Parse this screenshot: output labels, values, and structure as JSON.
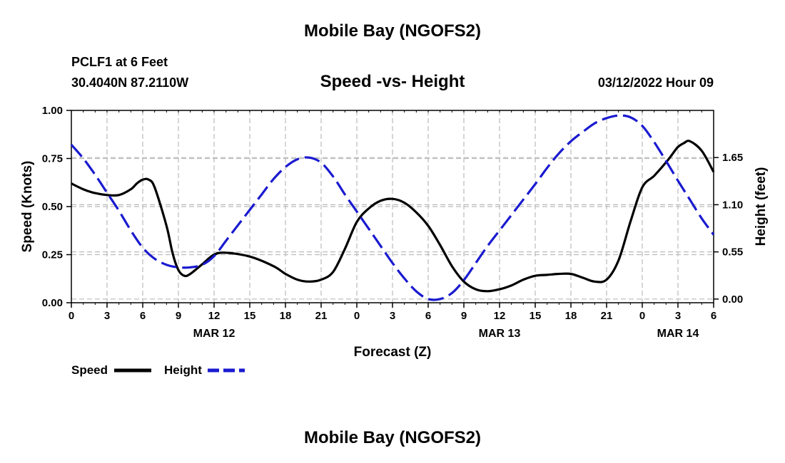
{
  "page": {
    "title": "Mobile Bay (NGOFS2)",
    "station": "PCLF1 at 6 Feet",
    "coordinates": "30.4040N  87.2110W",
    "chart_title": "Speed -vs- Height",
    "run_time": "03/12/2022 Hour 09",
    "bottom_title": "Mobile Bay (NGOFS2)"
  },
  "colors": {
    "speed": "#000000",
    "height": "#1a1ad0",
    "grid": "#bbbbbb"
  },
  "chart_data": {
    "type": "line",
    "title": "Speed -vs- Height",
    "xlabel": "Forecast (Z)",
    "ylabel": "Speed (Knots)",
    "y2label": "Height (feet)",
    "xlim": [
      0,
      54
    ],
    "ylim": [
      0,
      1
    ],
    "y2lim": [
      -0.043,
      2.2
    ],
    "grid": true,
    "x_ticks": [
      0,
      3,
      6,
      9,
      12,
      15,
      18,
      21,
      24,
      27,
      30,
      33,
      36,
      39,
      42,
      45,
      48,
      51,
      54
    ],
    "x_tick_labels": [
      "0",
      "3",
      "6",
      "9",
      "12",
      "15",
      "18",
      "21",
      "0",
      "3",
      "6",
      "9",
      "12",
      "15",
      "18",
      "21",
      "0",
      "3",
      "6"
    ],
    "date_labels": [
      {
        "x": 12,
        "label": "MAR 12"
      },
      {
        "x": 36,
        "label": "MAR 13"
      },
      {
        "x": 51,
        "label": "MAR 14"
      }
    ],
    "y_ticks": [
      0,
      0.25,
      0.5,
      0.75,
      1.0
    ],
    "y_tick_labels": [
      "0.00",
      "0.25",
      "0.50",
      "0.75",
      "1.00"
    ],
    "y2_ticks": [
      0,
      0.55,
      1.1,
      1.65
    ],
    "y2_tick_labels": [
      "0.00",
      "0.55",
      "1.10",
      "1.65"
    ],
    "legend_position": "bottom-left",
    "series": [
      {
        "name": "Speed",
        "axis": "left",
        "style": "solid",
        "x": [
          0,
          1,
          2,
          3,
          4,
          5,
          5.5,
          6,
          6.5,
          7,
          8,
          8.5,
          9,
          9.5,
          10,
          11,
          12,
          13,
          15,
          17,
          18,
          19,
          20,
          21,
          22,
          23,
          24,
          25,
          26,
          27,
          28,
          29,
          30,
          31,
          32,
          33,
          34,
          35,
          36,
          37,
          38,
          39,
          40,
          41,
          42,
          43,
          44,
          45,
          46,
          47,
          48,
          49,
          50,
          50.5,
          51,
          51.5,
          52,
          53,
          54
        ],
        "values": [
          0.62,
          0.59,
          0.57,
          0.56,
          0.56,
          0.59,
          0.62,
          0.64,
          0.64,
          0.6,
          0.4,
          0.26,
          0.17,
          0.14,
          0.15,
          0.2,
          0.25,
          0.26,
          0.24,
          0.19,
          0.15,
          0.12,
          0.11,
          0.12,
          0.16,
          0.28,
          0.42,
          0.49,
          0.53,
          0.54,
          0.52,
          0.47,
          0.4,
          0.3,
          0.19,
          0.11,
          0.07,
          0.06,
          0.07,
          0.09,
          0.12,
          0.14,
          0.145,
          0.15,
          0.15,
          0.13,
          0.11,
          0.12,
          0.22,
          0.42,
          0.6,
          0.66,
          0.73,
          0.77,
          0.81,
          0.83,
          0.84,
          0.79,
          0.68
        ]
      },
      {
        "name": "Height",
        "axis": "right",
        "style": "dashed",
        "x": [
          0,
          1,
          2,
          3,
          4,
          5,
          6,
          7,
          8,
          9,
          10,
          11,
          12,
          13,
          14,
          15,
          16,
          17,
          18,
          19,
          20,
          21,
          22,
          23,
          24,
          25,
          26,
          27,
          28,
          29,
          30,
          31,
          32,
          33,
          34,
          35,
          36,
          37,
          38,
          39,
          40,
          41,
          42,
          43,
          44,
          45,
          46,
          47,
          48,
          49,
          50,
          51,
          52,
          53,
          54
        ],
        "values": [
          1.8,
          1.64,
          1.45,
          1.24,
          1.03,
          0.8,
          0.6,
          0.47,
          0.4,
          0.37,
          0.37,
          0.4,
          0.5,
          0.68,
          0.86,
          1.04,
          1.22,
          1.4,
          1.54,
          1.63,
          1.65,
          1.59,
          1.43,
          1.22,
          1.02,
          0.82,
          0.62,
          0.42,
          0.24,
          0.09,
          0.0,
          0.0,
          0.07,
          0.22,
          0.42,
          0.62,
          0.8,
          0.98,
          1.16,
          1.34,
          1.53,
          1.7,
          1.84,
          1.95,
          2.05,
          2.11,
          2.14,
          2.12,
          2.02,
          1.83,
          1.61,
          1.38,
          1.16,
          0.94,
          0.75
        ]
      }
    ]
  }
}
